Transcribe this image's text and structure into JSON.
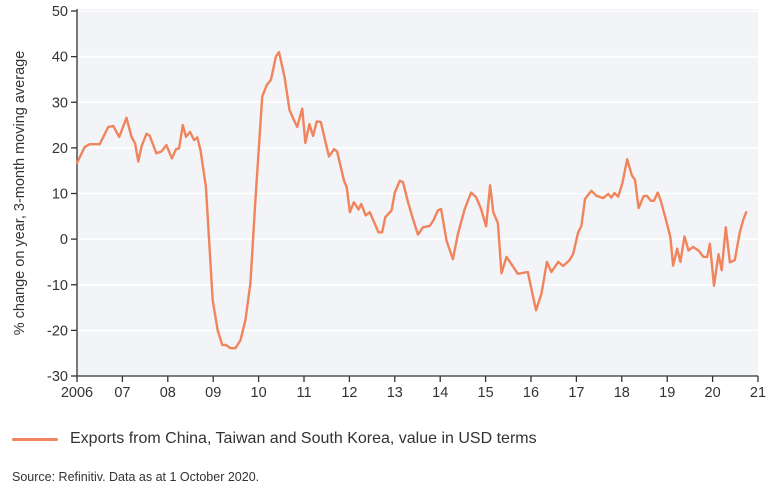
{
  "chart_data": {
    "type": "line",
    "title": "",
    "xlabel": "",
    "ylabel": "% change on year, 3-month moving average",
    "xlim": [
      2006,
      2021
    ],
    "ylim": [
      -30,
      50
    ],
    "yticks": [
      -30,
      -20,
      -10,
      0,
      10,
      20,
      30,
      40,
      50
    ],
    "xticks": [
      2006,
      2007,
      2008,
      2009,
      2010,
      2011,
      2012,
      2013,
      2014,
      2015,
      2016,
      2017,
      2018,
      2019,
      2020,
      2021
    ],
    "xtick_labels": [
      "2006",
      "07",
      "08",
      "09",
      "10",
      "11",
      "12",
      "13",
      "14",
      "15",
      "16",
      "17",
      "18",
      "19",
      "20",
      "21"
    ],
    "grid": "horizontal",
    "legend_position": "bottom-left",
    "series": [
      {
        "name": "Exports from China, Taiwan and South Korea, value in USD terms",
        "color": "#f0845c",
        "points": [
          [
            2006.0,
            16.7
          ],
          [
            2006.17,
            20.2
          ],
          [
            2006.28,
            20.8
          ],
          [
            2006.5,
            20.8
          ],
          [
            2006.69,
            24.6
          ],
          [
            2006.8,
            24.8
          ],
          [
            2006.93,
            22.4
          ],
          [
            2007.09,
            26.6
          ],
          [
            2007.2,
            22.4
          ],
          [
            2007.28,
            21
          ],
          [
            2007.35,
            17
          ],
          [
            2007.42,
            20.3
          ],
          [
            2007.53,
            23.1
          ],
          [
            2007.6,
            22.7
          ],
          [
            2007.75,
            18.8
          ],
          [
            2007.86,
            19.2
          ],
          [
            2007.97,
            20.6
          ],
          [
            2008.09,
            17.7
          ],
          [
            2008.18,
            19.7
          ],
          [
            2008.25,
            19.9
          ],
          [
            2008.33,
            25
          ],
          [
            2008.4,
            22.4
          ],
          [
            2008.49,
            23.5
          ],
          [
            2008.58,
            21.7
          ],
          [
            2008.65,
            22.3
          ],
          [
            2008.72,
            19.5
          ],
          [
            2008.84,
            11.5
          ],
          [
            2008.99,
            -13.4
          ],
          [
            2009.1,
            -20
          ],
          [
            2009.2,
            -23.2
          ],
          [
            2009.28,
            -23.2
          ],
          [
            2009.38,
            -23.9
          ],
          [
            2009.49,
            -23.9
          ],
          [
            2009.6,
            -22.2
          ],
          [
            2009.71,
            -17.8
          ],
          [
            2009.82,
            -9.7
          ],
          [
            2009.93,
            8.5
          ],
          [
            2010.08,
            31.2
          ],
          [
            2010.18,
            33.8
          ],
          [
            2010.27,
            34.9
          ],
          [
            2010.38,
            40
          ],
          [
            2010.45,
            41
          ],
          [
            2010.57,
            35.6
          ],
          [
            2010.68,
            28.3
          ],
          [
            2010.76,
            26.5
          ],
          [
            2010.85,
            24.6
          ],
          [
            2010.96,
            28.6
          ],
          [
            2011.03,
            21.1
          ],
          [
            2011.12,
            25.2
          ],
          [
            2011.2,
            22.6
          ],
          [
            2011.28,
            25.8
          ],
          [
            2011.37,
            25.7
          ],
          [
            2011.48,
            21
          ],
          [
            2011.55,
            18.1
          ],
          [
            2011.66,
            19.7
          ],
          [
            2011.73,
            19.2
          ],
          [
            2011.88,
            12.8
          ],
          [
            2011.94,
            11.4
          ],
          [
            2012.01,
            5.9
          ],
          [
            2012.1,
            8.1
          ],
          [
            2012.2,
            6.5
          ],
          [
            2012.26,
            7.7
          ],
          [
            2012.36,
            5.2
          ],
          [
            2012.45,
            5.9
          ],
          [
            2012.64,
            1.5
          ],
          [
            2012.72,
            1.5
          ],
          [
            2012.79,
            4.8
          ],
          [
            2012.93,
            6.3
          ],
          [
            2013.0,
            10.2
          ],
          [
            2013.11,
            12.8
          ],
          [
            2013.18,
            12.5
          ],
          [
            2013.29,
            8.1
          ],
          [
            2013.4,
            4.4
          ],
          [
            2013.51,
            1.0
          ],
          [
            2013.62,
            2.6
          ],
          [
            2013.77,
            2.9
          ],
          [
            2013.85,
            4.1
          ],
          [
            2013.95,
            6.3
          ],
          [
            2014.02,
            6.6
          ],
          [
            2014.14,
            -0.4
          ],
          [
            2014.28,
            -4.4
          ],
          [
            2014.39,
            1.1
          ],
          [
            2014.54,
            6.6
          ],
          [
            2014.68,
            10.2
          ],
          [
            2014.79,
            9.2
          ],
          [
            2014.9,
            6.6
          ],
          [
            2015.01,
            2.8
          ],
          [
            2015.1,
            11.8
          ],
          [
            2015.17,
            5.9
          ],
          [
            2015.27,
            3.5
          ],
          [
            2015.35,
            -7.5
          ],
          [
            2015.46,
            -3.9
          ],
          [
            2015.57,
            -5.5
          ],
          [
            2015.71,
            -7.6
          ],
          [
            2015.93,
            -7.2
          ],
          [
            2016.11,
            -15.6
          ],
          [
            2016.23,
            -12
          ],
          [
            2016.35,
            -5
          ],
          [
            2016.45,
            -7.2
          ],
          [
            2016.6,
            -5
          ],
          [
            2016.71,
            -5.9
          ],
          [
            2016.85,
            -4.6
          ],
          [
            2016.93,
            -3.2
          ],
          [
            2017.04,
            1.5
          ],
          [
            2017.11,
            2.9
          ],
          [
            2017.19,
            8.8
          ],
          [
            2017.33,
            10.6
          ],
          [
            2017.44,
            9.5
          ],
          [
            2017.59,
            9.0
          ],
          [
            2017.7,
            9.9
          ],
          [
            2017.77,
            9.1
          ],
          [
            2017.84,
            10.1
          ],
          [
            2017.92,
            9.3
          ],
          [
            2018.01,
            12.2
          ],
          [
            2018.12,
            17.5
          ],
          [
            2018.22,
            14
          ],
          [
            2018.29,
            13
          ],
          [
            2018.37,
            6.8
          ],
          [
            2018.48,
            9.4
          ],
          [
            2018.55,
            9.5
          ],
          [
            2018.64,
            8.4
          ],
          [
            2018.71,
            8.4
          ],
          [
            2018.79,
            10.2
          ],
          [
            2018.86,
            8.4
          ],
          [
            2018.99,
            3.6
          ],
          [
            2019.07,
            0.4
          ],
          [
            2019.13,
            -5.8
          ],
          [
            2019.22,
            -2.1
          ],
          [
            2019.29,
            -5.0
          ],
          [
            2019.38,
            0.6
          ],
          [
            2019.47,
            -2.5
          ],
          [
            2019.57,
            -1.7
          ],
          [
            2019.69,
            -2.5
          ],
          [
            2019.8,
            -3.9
          ],
          [
            2019.88,
            -3.9
          ],
          [
            2019.94,
            -1
          ],
          [
            2020.03,
            -10.2
          ],
          [
            2020.13,
            -3.3
          ],
          [
            2020.2,
            -6.8
          ],
          [
            2020.29,
            2.6
          ],
          [
            2020.38,
            -5.1
          ],
          [
            2020.49,
            -4.6
          ],
          [
            2020.6,
            1.5
          ],
          [
            2020.68,
            4.4
          ],
          [
            2020.74,
            5.9
          ]
        ]
      }
    ],
    "source": "Source: Refinitiv. Data as at 1 October 2020."
  },
  "colors": {
    "plot_background": "#f2f4f7",
    "gridline": "#ffffff",
    "axis": "#333333",
    "line": "#f0845c"
  }
}
